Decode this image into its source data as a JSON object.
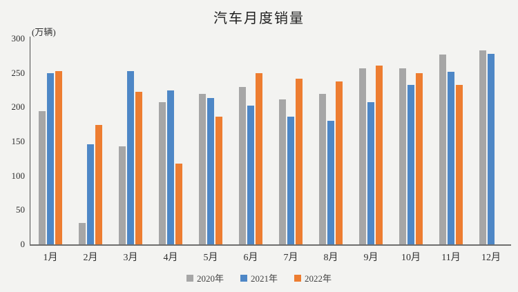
{
  "title": "汽车月度销量",
  "unit_label": "(万辆)",
  "background_color": "#f3f3f1",
  "axis_color": "#4d4d4d",
  "chart_data": {
    "type": "bar",
    "title": "汽车月度销量",
    "ylabel": "(万辆)",
    "xlabel": "",
    "ylim": [
      0,
      300
    ],
    "yticks": [
      0,
      50,
      100,
      150,
      200,
      250,
      300
    ],
    "grid": false,
    "legend_position": "bottom",
    "categories": [
      "1月",
      "2月",
      "3月",
      "4月",
      "5月",
      "6月",
      "7月",
      "8月",
      "9月",
      "10月",
      "11月",
      "12月"
    ],
    "series": [
      {
        "name": "2020年",
        "color": "#a6a6a6",
        "values": [
          194,
          31,
          143,
          207,
          219,
          230,
          211,
          219,
          257,
          257,
          277,
          283
        ]
      },
      {
        "name": "2021年",
        "color": "#4e87c6",
        "values": [
          250,
          146,
          253,
          225,
          213,
          202,
          186,
          180,
          207,
          233,
          252,
          278
        ]
      },
      {
        "name": "2022年",
        "color": "#ed7d31",
        "values": [
          253,
          174,
          223,
          118,
          186,
          250,
          242,
          238,
          261,
          250,
          233,
          null
        ]
      }
    ]
  }
}
